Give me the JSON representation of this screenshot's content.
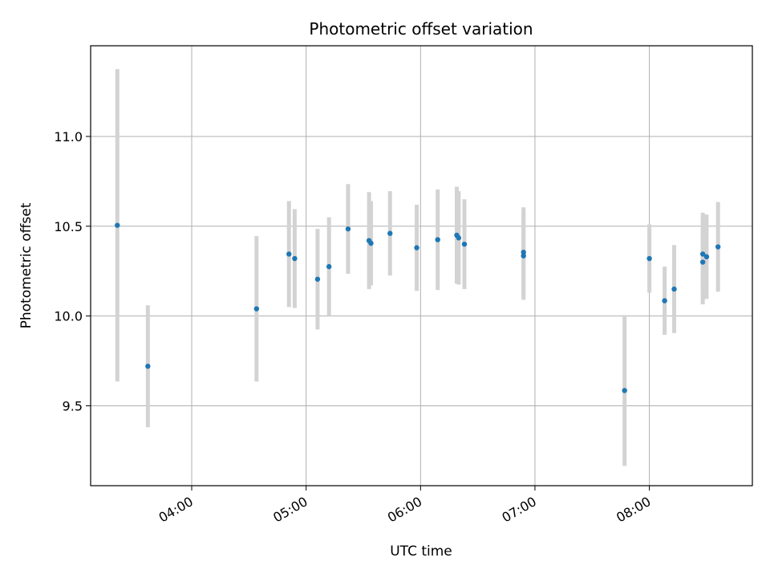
{
  "chart_data": {
    "type": "scatter",
    "title": "Photometric offset variation",
    "xlabel": "UTC time",
    "ylabel": "Photometric offset",
    "x_axis_type": "time",
    "xlim": [
      "03:07",
      "08:54"
    ],
    "ylim": [
      9.055,
      11.505
    ],
    "x_ticks": [
      "04:00",
      "05:00",
      "06:00",
      "07:00",
      "08:00"
    ],
    "y_ticks": [
      9.5,
      10.0,
      10.5,
      11.0
    ],
    "y_tick_labels": [
      "9.5",
      "10.0",
      "10.5",
      "11.0"
    ],
    "grid": true,
    "marker_color": "#1f77b4",
    "errorbar_color": "#d3d3d3",
    "points": [
      {
        "x": "03:21",
        "y": 10.505,
        "err": 0.87
      },
      {
        "x": "03:37",
        "y": 9.72,
        "err": 0.34
      },
      {
        "x": "04:34",
        "y": 10.04,
        "err": 0.405
      },
      {
        "x": "04:51",
        "y": 10.345,
        "err": 0.295
      },
      {
        "x": "04:54",
        "y": 10.32,
        "err": 0.275
      },
      {
        "x": "05:06",
        "y": 10.205,
        "err": 0.28
      },
      {
        "x": "05:12",
        "y": 10.275,
        "err": 0.275
      },
      {
        "x": "05:22",
        "y": 10.485,
        "err": 0.25
      },
      {
        "x": "05:33",
        "y": 10.42,
        "err": 0.27
      },
      {
        "x": "05:34",
        "y": 10.405,
        "err": 0.235
      },
      {
        "x": "05:44",
        "y": 10.46,
        "err": 0.235
      },
      {
        "x": "05:58",
        "y": 10.38,
        "err": 0.24
      },
      {
        "x": "06:09",
        "y": 10.425,
        "err": 0.28
      },
      {
        "x": "06:19",
        "y": 10.45,
        "err": 0.27
      },
      {
        "x": "06:20",
        "y": 10.435,
        "err": 0.26
      },
      {
        "x": "06:23",
        "y": 10.4,
        "err": 0.25
      },
      {
        "x": "06:54",
        "y": 10.335,
        "err": 0.245
      },
      {
        "x": "06:54",
        "y": 10.355,
        "err": 0.25
      },
      {
        "x": "07:47",
        "y": 9.585,
        "err": 0.42
      },
      {
        "x": "08:00",
        "y": 10.32,
        "err": 0.19
      },
      {
        "x": "08:08",
        "y": 10.085,
        "err": 0.19
      },
      {
        "x": "08:13",
        "y": 10.15,
        "err": 0.245
      },
      {
        "x": "08:28",
        "y": 10.345,
        "err": 0.23
      },
      {
        "x": "08:28",
        "y": 10.3,
        "err": 0.235
      },
      {
        "x": "08:30",
        "y": 10.33,
        "err": 0.235
      },
      {
        "x": "08:36",
        "y": 10.385,
        "err": 0.25
      }
    ]
  }
}
